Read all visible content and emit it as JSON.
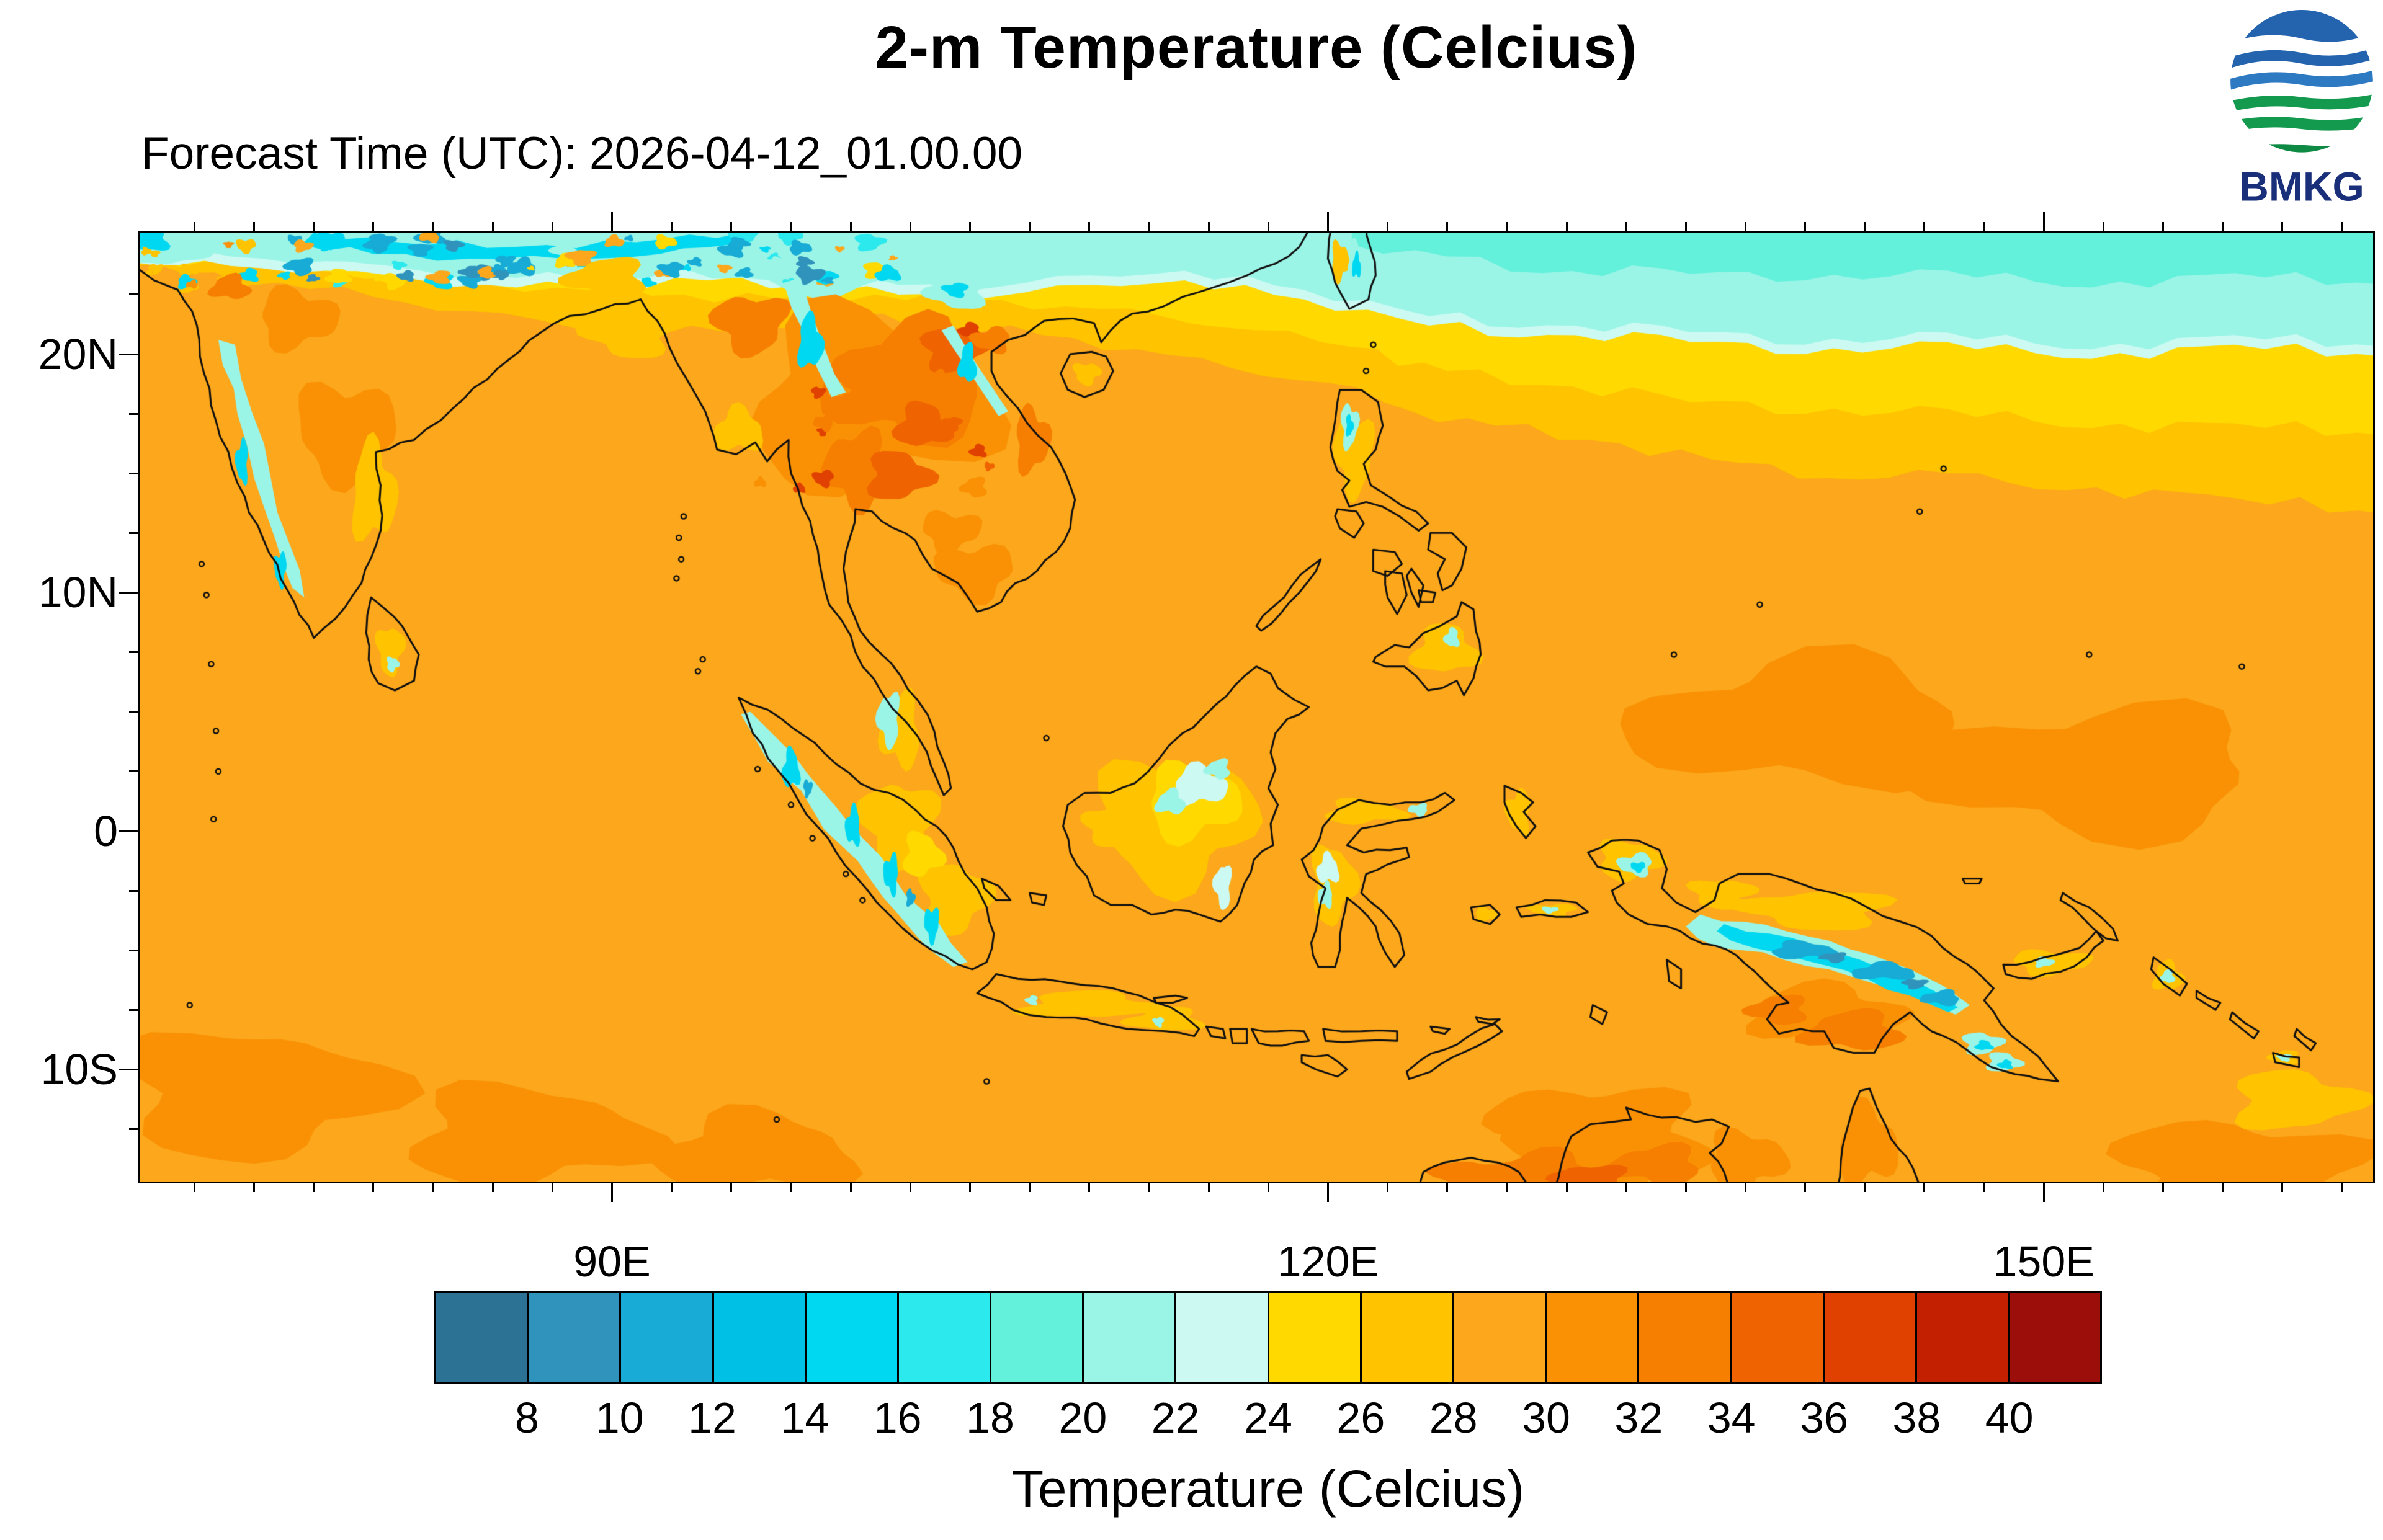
{
  "title": "2-m Temperature (Celcius)",
  "forecast_label": "Forecast Time (UTC): 2026-04-12_01.00.00",
  "logo": {
    "text": "BMKG"
  },
  "map": {
    "extent": {
      "lon_min": 70.2,
      "lon_max": 163.8,
      "lat_min": -14.7,
      "lat_max": 25.1
    },
    "x_ticks": [
      {
        "label": "90E",
        "lon": 90
      },
      {
        "label": "120E",
        "lon": 120
      },
      {
        "label": "150E",
        "lon": 150
      }
    ],
    "y_ticks": [
      {
        "label": "20N",
        "lat": 20
      },
      {
        "label": "10N",
        "lat": 10
      },
      {
        "label": "0",
        "lat": 0
      },
      {
        "label": "10S",
        "lat": -10
      }
    ]
  },
  "colorbar": {
    "caption": "Temperature (Celcius)",
    "tick_labels": [
      "8",
      "10",
      "12",
      "14",
      "16",
      "18",
      "20",
      "22",
      "24",
      "26",
      "28",
      "30",
      "32",
      "34",
      "36",
      "38",
      "40"
    ],
    "colors": [
      "#2B7294",
      "#2F93BC",
      "#17ABD5",
      "#00C1E5",
      "#00D8F1",
      "#2CE9EE",
      "#63F1DC",
      "#9BF5E7",
      "#CCFAF2",
      "#FFD900",
      "#FFC300",
      "#FCA71C",
      "#FA9104",
      "#F67E00",
      "#EF6300",
      "#E04100",
      "#C22000",
      "#9B0E0A"
    ]
  }
}
